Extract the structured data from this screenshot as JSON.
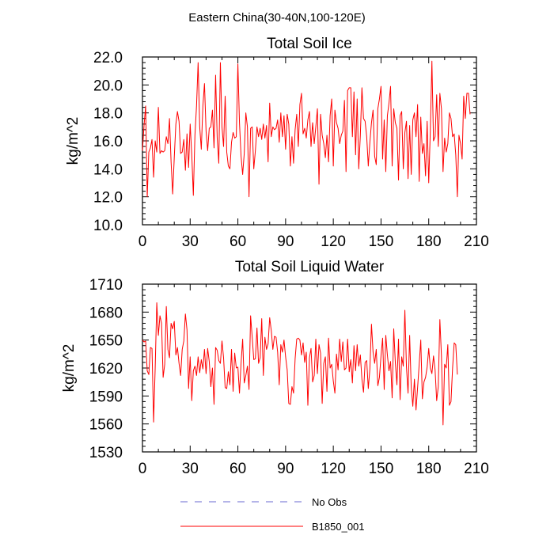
{
  "figure_title": "Eastern China(30-40N,100-120E)",
  "chart_data": [
    {
      "type": "line",
      "title": "Total Soil Ice",
      "xlabel": "",
      "ylabel": "kg/m^2",
      "xlim": [
        0,
        210
      ],
      "ylim": [
        10,
        22
      ],
      "x_ticks": [
        0,
        30,
        60,
        90,
        120,
        150,
        180,
        210
      ],
      "y_ticks": [
        10,
        12,
        14,
        16,
        18,
        20,
        22
      ],
      "x_tick_labels": [
        "0",
        "30",
        "60",
        "90",
        "120",
        "150",
        "180",
        "210"
      ],
      "y_tick_labels": [
        "10.0",
        "12.0",
        "14.0",
        "16.0",
        "18.0",
        "20.0",
        "22.0"
      ],
      "series": [
        {
          "name": "B1850_001",
          "color": "#ff0000",
          "x_start": 0,
          "x_step": 1,
          "values": [
            15.3,
            17.1,
            18.5,
            12.0,
            15.2,
            15.5,
            16.1,
            13.4,
            16.0,
            15.2,
            18.4,
            15.1,
            15.3,
            15.2,
            15.3,
            16.3,
            15.8,
            17.6,
            14.5,
            12.2,
            14.8,
            17.2,
            18.1,
            17.4,
            15.1,
            15.2,
            16.1,
            13.9,
            16.5,
            14.1,
            17.2,
            15.0,
            12.1,
            16.4,
            18.5,
            21.6,
            17.0,
            15.4,
            18.5,
            20.1,
            16.7,
            15.3,
            16.9,
            17.0,
            18.2,
            15.5,
            20.7,
            16.2,
            14.4,
            21.6,
            17.0,
            15.6,
            19.2,
            15.2,
            14.2,
            14.0,
            15.9,
            16.6,
            16.2,
            16.3,
            21.5,
            17.3,
            14.9,
            13.6,
            15.1,
            18.0,
            17.0,
            12.0,
            16.9,
            17.0,
            14.0,
            15.3,
            17.0,
            16.3,
            16.9,
            16.1,
            17.2,
            16.2,
            17.1,
            14.5,
            18.7,
            16.3,
            17.0,
            16.8,
            16.9,
            17.5,
            15.9,
            18.0,
            16.3,
            17.8,
            15.4,
            17.9,
            17.2,
            14.2,
            16.3,
            14.4,
            16.8,
            17.9,
            15.6,
            18.6,
            19.4,
            16.5,
            16.9,
            16.2,
            17.5,
            18.1,
            15.6,
            17.3,
            15.8,
            17.0,
            18.3,
            12.9,
            17.9,
            16.4,
            15.8,
            14.8,
            16.4,
            14.5,
            17.8,
            19.0,
            14.2,
            18.2,
            17.3,
            16.9,
            15.8,
            16.4,
            16.7,
            18.9,
            13.8,
            19.6,
            19.8,
            19.8,
            16.3,
            19.5,
            15.0,
            19.0,
            14.0,
            16.4,
            19.8,
            17.6,
            17.4,
            16.3,
            14.2,
            15.9,
            17.3,
            18.2,
            14.9,
            14.3,
            18.3,
            19.0,
            19.9,
            14.7,
            17.5,
            13.8,
            17.8,
            18.7,
            19.9,
            14.2,
            18.3,
            17.3,
            16.9,
            13.2,
            17.8,
            18.1,
            14.0,
            16.6,
            17.4,
            13.3,
            17.1,
            13.6,
            17.5,
            18.0,
            16.3,
            18.6,
            13.1,
            17.7,
            15.1,
            15.8,
            13.5,
            17.4,
            13.0,
            16.7,
            21.7,
            16.0,
            16.3,
            19.3,
            15.6,
            19.4,
            18.3,
            13.8,
            16.2,
            15.2,
            15.8,
            18.0,
            17.6,
            16.3,
            16.5,
            15.0,
            12.0,
            16.4,
            15.8,
            14.7,
            19.2,
            17.6,
            19.4,
            19.4,
            17.9
          ]
        }
      ]
    },
    {
      "type": "line",
      "title": "Total Soil Liquid Water",
      "xlabel": "",
      "ylabel": "kg/m^2",
      "xlim": [
        0,
        210
      ],
      "ylim": [
        1530,
        1710
      ],
      "x_ticks": [
        0,
        30,
        60,
        90,
        120,
        150,
        180,
        210
      ],
      "y_ticks": [
        1530,
        1560,
        1590,
        1620,
        1650,
        1680,
        1710
      ],
      "x_tick_labels": [
        "0",
        "30",
        "60",
        "90",
        "120",
        "150",
        "180",
        "210"
      ],
      "y_tick_labels": [
        "1530",
        "1560",
        "1590",
        "1620",
        "1650",
        "1680",
        "1710"
      ],
      "series": [
        {
          "name": "B1850_001",
          "color": "#ff0000",
          "x_start": 0,
          "x_step": 1,
          "values": [
            1650,
            1648,
            1649,
            1617,
            1613,
            1642,
            1641,
            1562,
            1620,
            1690,
            1655,
            1676,
            1668,
            1610,
            1624,
            1686,
            1640,
            1631,
            1668,
            1662,
            1670,
            1634,
            1642,
            1625,
            1612,
            1640,
            1649,
            1678,
            1661,
            1598,
            1632,
            1585,
            1617,
            1622,
            1612,
            1632,
            1615,
            1629,
            1619,
            1640,
            1614,
            1641,
            1627,
            1600,
            1620,
            1581,
            1642,
            1639,
            1628,
            1625,
            1649,
            1631,
            1599,
            1598,
            1616,
            1602,
            1640,
            1595,
            1636,
            1620,
            1621,
            1593,
            1625,
            1651,
            1604,
            1612,
            1622,
            1597,
            1676,
            1653,
            1629,
            1630,
            1663,
            1625,
            1631,
            1673,
            1612,
            1653,
            1640,
            1646,
            1674,
            1660,
            1640,
            1654,
            1653,
            1637,
            1602,
            1645,
            1637,
            1650,
            1632,
            1618,
            1582,
            1581,
            1600,
            1593,
            1630,
            1651,
            1652,
            1650,
            1634,
            1647,
            1626,
            1637,
            1580,
            1631,
            1641,
            1605,
            1612,
            1651,
            1614,
            1645,
            1636,
            1582,
            1625,
            1632,
            1595,
            1652,
            1620,
            1624,
            1606,
            1593,
            1635,
            1618,
            1651,
            1627,
            1648,
            1618,
            1620,
            1651,
            1616,
            1629,
            1604,
            1644,
            1617,
            1645,
            1622,
            1634,
            1608,
            1594,
            1626,
            1628,
            1598,
            1619,
            1667,
            1637,
            1625,
            1640,
            1601,
            1610,
            1633,
            1652,
            1597,
            1655,
            1634,
            1617,
            1627,
            1588,
            1662,
            1626,
            1602,
            1651,
            1586,
            1632,
            1622,
            1682,
            1621,
            1593,
            1655,
            1599,
            1579,
            1608,
            1575,
            1599,
            1624,
            1650,
            1587,
            1605,
            1610,
            1621,
            1641,
            1620,
            1614,
            1633,
            1618,
            1585,
            1600,
            1672,
            1633,
            1559,
            1624,
            1620,
            1645,
            1580,
            1584,
            1620,
            1647,
            1645,
            1613
          ]
        }
      ]
    }
  ],
  "legend": {
    "placement": "bottom-center",
    "entries": [
      {
        "label": "No Obs",
        "color": "#6a6ad0",
        "style": "dashed"
      },
      {
        "label": "B1850_001",
        "color": "#ff0000",
        "style": "solid"
      }
    ]
  }
}
